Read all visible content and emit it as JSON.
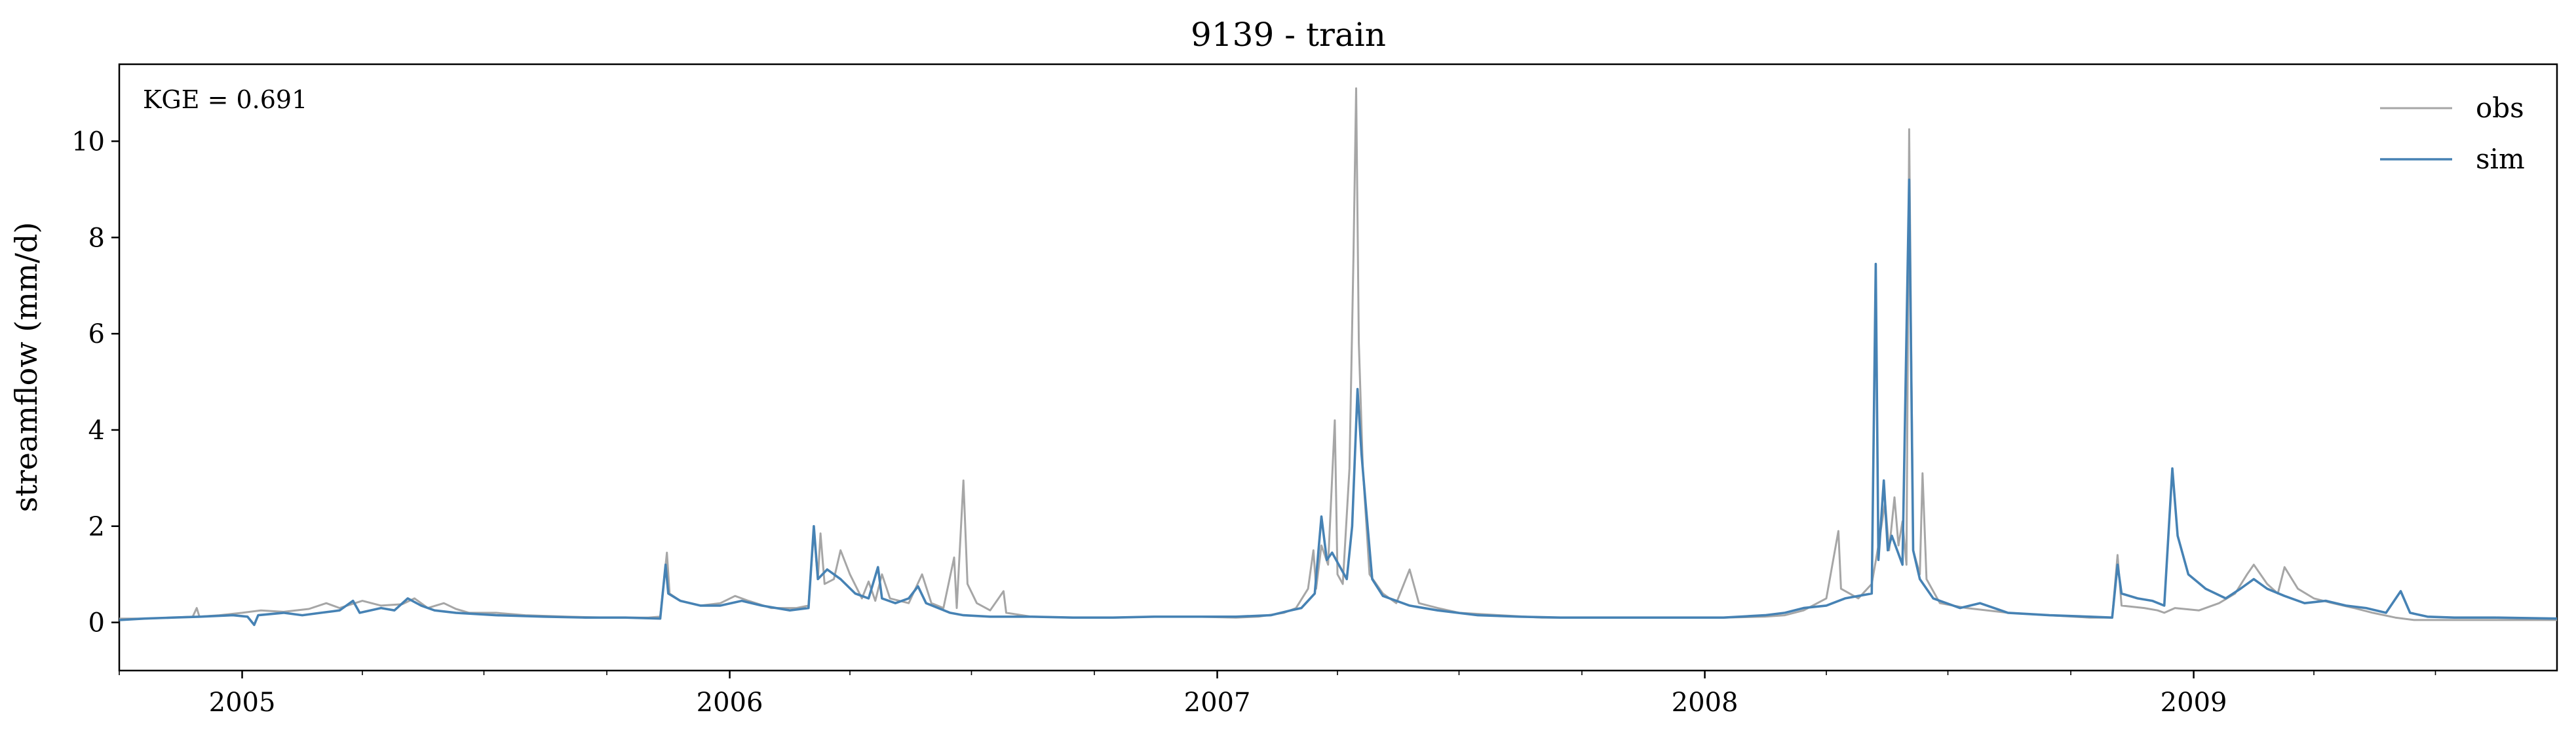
{
  "chart_data": {
    "type": "line",
    "title": "9139 - train",
    "xlabel": "",
    "ylabel": "streamflow (mm/d)",
    "annotation": "KGE = 0.691",
    "x_range": [
      "2004-10-01",
      "2009-09-30"
    ],
    "ylim": [
      -1,
      11.6
    ],
    "y_ticks": [
      0,
      2,
      4,
      6,
      8,
      10
    ],
    "y_tick_labels": [
      "0",
      "2",
      "4",
      "6",
      "8",
      "10"
    ],
    "x_ticks": [
      "2005-01-01",
      "2006-01-01",
      "2007-01-01",
      "2008-01-01",
      "2009-01-01"
    ],
    "x_tick_labels": [
      "2005",
      "2006",
      "2007",
      "2008",
      "2009"
    ],
    "grid": false,
    "legend_position": "top-right",
    "series": [
      {
        "name": "obs",
        "color": "#a6a6a6",
        "points": [
          [
            "2004-10-01",
            0.08
          ],
          [
            "2004-10-20",
            0.08
          ],
          [
            "2004-11-10",
            0.1
          ],
          [
            "2004-11-25",
            0.12
          ],
          [
            "2004-11-28",
            0.3
          ],
          [
            "2004-11-30",
            0.12
          ],
          [
            "2004-12-15",
            0.15
          ],
          [
            "2005-01-01",
            0.2
          ],
          [
            "2005-01-15",
            0.25
          ],
          [
            "2005-02-01",
            0.22
          ],
          [
            "2005-02-20",
            0.28
          ],
          [
            "2005-03-05",
            0.4
          ],
          [
            "2005-03-15",
            0.3
          ],
          [
            "2005-04-01",
            0.45
          ],
          [
            "2005-04-15",
            0.35
          ],
          [
            "2005-05-01",
            0.38
          ],
          [
            "2005-05-10",
            0.5
          ],
          [
            "2005-05-20",
            0.3
          ],
          [
            "2005-06-01",
            0.4
          ],
          [
            "2005-06-10",
            0.28
          ],
          [
            "2005-06-20",
            0.2
          ],
          [
            "2005-07-10",
            0.2
          ],
          [
            "2005-08-01",
            0.15
          ],
          [
            "2005-09-01",
            0.12
          ],
          [
            "2005-10-01",
            0.1
          ],
          [
            "2005-11-01",
            0.1
          ],
          [
            "2005-11-10",
            0.12
          ],
          [
            "2005-11-15",
            1.45
          ],
          [
            "2005-11-17",
            0.6
          ],
          [
            "2005-11-25",
            0.45
          ],
          [
            "2005-12-10",
            0.35
          ],
          [
            "2005-12-25",
            0.4
          ],
          [
            "2006-01-05",
            0.55
          ],
          [
            "2006-01-15",
            0.45
          ],
          [
            "2006-02-01",
            0.3
          ],
          [
            "2006-02-20",
            0.3
          ],
          [
            "2006-03-01",
            0.35
          ],
          [
            "2006-03-05",
            1.9
          ],
          [
            "2006-03-08",
            0.9
          ],
          [
            "2006-03-10",
            1.85
          ],
          [
            "2006-03-13",
            0.8
          ],
          [
            "2006-03-20",
            0.9
          ],
          [
            "2006-03-25",
            1.5
          ],
          [
            "2006-04-01",
            1.0
          ],
          [
            "2006-04-10",
            0.5
          ],
          [
            "2006-04-15",
            0.85
          ],
          [
            "2006-04-20",
            0.45
          ],
          [
            "2006-04-25",
            1.0
          ],
          [
            "2006-05-01",
            0.5
          ],
          [
            "2006-05-15",
            0.4
          ],
          [
            "2006-05-25",
            1.0
          ],
          [
            "2006-06-01",
            0.4
          ],
          [
            "2006-06-10",
            0.3
          ],
          [
            "2006-06-18",
            1.35
          ],
          [
            "2006-06-20",
            0.3
          ],
          [
            "2006-06-25",
            2.95
          ],
          [
            "2006-06-28",
            0.8
          ],
          [
            "2006-07-05",
            0.4
          ],
          [
            "2006-07-15",
            0.25
          ],
          [
            "2006-07-25",
            0.65
          ],
          [
            "2006-07-27",
            0.2
          ],
          [
            "2006-08-15",
            0.12
          ],
          [
            "2006-09-15",
            0.1
          ],
          [
            "2006-10-15",
            0.1
          ],
          [
            "2006-11-15",
            0.12
          ],
          [
            "2006-12-15",
            0.12
          ],
          [
            "2007-01-15",
            0.1
          ],
          [
            "2007-02-01",
            0.12
          ],
          [
            "2007-02-20",
            0.2
          ],
          [
            "2007-03-01",
            0.3
          ],
          [
            "2007-03-10",
            0.7
          ],
          [
            "2007-03-14",
            1.5
          ],
          [
            "2007-03-16",
            0.7
          ],
          [
            "2007-03-20",
            1.6
          ],
          [
            "2007-03-25",
            1.2
          ],
          [
            "2007-03-30",
            4.2
          ],
          [
            "2007-04-01",
            1.0
          ],
          [
            "2007-04-05",
            0.8
          ],
          [
            "2007-04-10",
            3.2
          ],
          [
            "2007-04-13",
            7.6
          ],
          [
            "2007-04-15",
            11.1
          ],
          [
            "2007-04-17",
            5.8
          ],
          [
            "2007-04-20",
            3.2
          ],
          [
            "2007-04-25",
            1.0
          ],
          [
            "2007-05-05",
            0.6
          ],
          [
            "2007-05-15",
            0.4
          ],
          [
            "2007-05-25",
            1.1
          ],
          [
            "2007-06-01",
            0.4
          ],
          [
            "2007-06-15",
            0.3
          ],
          [
            "2007-07-01",
            0.2
          ],
          [
            "2007-08-01",
            0.15
          ],
          [
            "2007-09-01",
            0.1
          ],
          [
            "2007-10-15",
            0.1
          ],
          [
            "2007-12-01",
            0.1
          ],
          [
            "2008-01-15",
            0.1
          ],
          [
            "2008-02-15",
            0.12
          ],
          [
            "2008-03-01",
            0.15
          ],
          [
            "2008-03-15",
            0.25
          ],
          [
            "2008-04-01",
            0.5
          ],
          [
            "2008-04-10",
            1.9
          ],
          [
            "2008-04-12",
            0.7
          ],
          [
            "2008-04-25",
            0.5
          ],
          [
            "2008-05-05",
            0.8
          ],
          [
            "2008-05-10",
            1.6
          ],
          [
            "2008-05-15",
            2.5
          ],
          [
            "2008-05-18",
            1.5
          ],
          [
            "2008-05-22",
            2.6
          ],
          [
            "2008-05-25",
            1.6
          ],
          [
            "2008-05-28",
            2.1
          ],
          [
            "2008-05-31",
            1.2
          ],
          [
            "2008-06-02",
            10.25
          ],
          [
            "2008-06-05",
            1.5
          ],
          [
            "2008-06-10",
            1.0
          ],
          [
            "2008-06-12",
            3.1
          ],
          [
            "2008-06-15",
            0.9
          ],
          [
            "2008-06-25",
            0.4
          ],
          [
            "2008-07-15",
            0.3
          ],
          [
            "2008-08-15",
            0.2
          ],
          [
            "2008-09-15",
            0.15
          ],
          [
            "2008-10-15",
            0.1
          ],
          [
            "2008-11-01",
            0.1
          ],
          [
            "2008-11-05",
            1.4
          ],
          [
            "2008-11-08",
            0.35
          ],
          [
            "2008-11-25",
            0.3
          ],
          [
            "2008-12-05",
            0.25
          ],
          [
            "2008-12-10",
            0.2
          ],
          [
            "2008-12-18",
            0.3
          ],
          [
            "2009-01-05",
            0.25
          ],
          [
            "2009-01-20",
            0.4
          ],
          [
            "2009-02-01",
            0.6
          ],
          [
            "2009-02-10",
            1.0
          ],
          [
            "2009-02-15",
            1.2
          ],
          [
            "2009-02-25",
            0.8
          ],
          [
            "2009-03-05",
            0.6
          ],
          [
            "2009-03-10",
            1.15
          ],
          [
            "2009-03-20",
            0.7
          ],
          [
            "2009-04-01",
            0.5
          ],
          [
            "2009-04-15",
            0.4
          ],
          [
            "2009-05-01",
            0.3
          ],
          [
            "2009-05-15",
            0.2
          ],
          [
            "2009-06-01",
            0.1
          ],
          [
            "2009-06-15",
            0.05
          ],
          [
            "2009-07-15",
            0.05
          ],
          [
            "2009-08-15",
            0.05
          ],
          [
            "2009-09-30",
            0.05
          ]
        ]
      },
      {
        "name": "sim",
        "color": "#4682b4",
        "points": [
          [
            "2004-10-01",
            0.05
          ],
          [
            "2004-10-20",
            0.08
          ],
          [
            "2004-11-10",
            0.1
          ],
          [
            "2004-12-01",
            0.12
          ],
          [
            "2004-12-25",
            0.15
          ],
          [
            "2005-01-05",
            0.12
          ],
          [
            "2005-01-10",
            -0.05
          ],
          [
            "2005-01-13",
            0.15
          ],
          [
            "2005-02-01",
            0.2
          ],
          [
            "2005-02-15",
            0.15
          ],
          [
            "2005-03-01",
            0.2
          ],
          [
            "2005-03-15",
            0.25
          ],
          [
            "2005-03-25",
            0.45
          ],
          [
            "2005-03-30",
            0.2
          ],
          [
            "2005-04-15",
            0.3
          ],
          [
            "2005-04-25",
            0.25
          ],
          [
            "2005-05-05",
            0.5
          ],
          [
            "2005-05-15",
            0.35
          ],
          [
            "2005-05-25",
            0.25
          ],
          [
            "2005-06-10",
            0.2
          ],
          [
            "2005-07-10",
            0.15
          ],
          [
            "2005-08-15",
            0.12
          ],
          [
            "2005-09-15",
            0.1
          ],
          [
            "2005-10-15",
            0.1
          ],
          [
            "2005-11-10",
            0.08
          ],
          [
            "2005-11-14",
            1.2
          ],
          [
            "2005-11-16",
            0.6
          ],
          [
            "2005-11-25",
            0.45
          ],
          [
            "2005-12-10",
            0.35
          ],
          [
            "2005-12-25",
            0.35
          ],
          [
            "2006-01-10",
            0.45
          ],
          [
            "2006-01-25",
            0.35
          ],
          [
            "2006-02-15",
            0.25
          ],
          [
            "2006-03-01",
            0.3
          ],
          [
            "2006-03-05",
            2.0
          ],
          [
            "2006-03-08",
            0.9
          ],
          [
            "2006-03-15",
            1.1
          ],
          [
            "2006-03-25",
            0.9
          ],
          [
            "2006-04-05",
            0.6
          ],
          [
            "2006-04-15",
            0.5
          ],
          [
            "2006-04-22",
            1.15
          ],
          [
            "2006-04-25",
            0.5
          ],
          [
            "2006-05-05",
            0.4
          ],
          [
            "2006-05-15",
            0.5
          ],
          [
            "2006-05-22",
            0.75
          ],
          [
            "2006-05-28",
            0.4
          ],
          [
            "2006-06-15",
            0.2
          ],
          [
            "2006-06-25",
            0.15
          ],
          [
            "2006-07-15",
            0.12
          ],
          [
            "2006-08-15",
            0.12
          ],
          [
            "2006-09-15",
            0.1
          ],
          [
            "2006-10-15",
            0.1
          ],
          [
            "2006-11-15",
            0.12
          ],
          [
            "2006-12-15",
            0.12
          ],
          [
            "2007-01-15",
            0.12
          ],
          [
            "2007-02-10",
            0.15
          ],
          [
            "2007-02-25",
            0.25
          ],
          [
            "2007-03-05",
            0.3
          ],
          [
            "2007-03-15",
            0.6
          ],
          [
            "2007-03-20",
            2.2
          ],
          [
            "2007-03-24",
            1.3
          ],
          [
            "2007-03-28",
            1.45
          ],
          [
            "2007-04-02",
            1.2
          ],
          [
            "2007-04-08",
            0.9
          ],
          [
            "2007-04-12",
            2.0
          ],
          [
            "2007-04-16",
            4.85
          ],
          [
            "2007-04-19",
            3.5
          ],
          [
            "2007-04-22",
            2.5
          ],
          [
            "2007-04-27",
            0.9
          ],
          [
            "2007-05-05",
            0.55
          ],
          [
            "2007-05-15",
            0.45
          ],
          [
            "2007-05-25",
            0.35
          ],
          [
            "2007-06-15",
            0.25
          ],
          [
            "2007-07-15",
            0.15
          ],
          [
            "2007-08-15",
            0.12
          ],
          [
            "2007-09-15",
            0.1
          ],
          [
            "2007-10-15",
            0.1
          ],
          [
            "2007-12-01",
            0.1
          ],
          [
            "2008-01-15",
            0.1
          ],
          [
            "2008-02-15",
            0.15
          ],
          [
            "2008-03-01",
            0.2
          ],
          [
            "2008-03-15",
            0.3
          ],
          [
            "2008-04-01",
            0.35
          ],
          [
            "2008-04-15",
            0.5
          ],
          [
            "2008-04-25",
            0.55
          ],
          [
            "2008-05-05",
            0.6
          ],
          [
            "2008-05-08",
            7.45
          ],
          [
            "2008-05-10",
            1.3
          ],
          [
            "2008-05-14",
            2.95
          ],
          [
            "2008-05-17",
            1.5
          ],
          [
            "2008-05-20",
            1.8
          ],
          [
            "2008-05-24",
            1.5
          ],
          [
            "2008-05-28",
            1.2
          ],
          [
            "2008-06-02",
            9.2
          ],
          [
            "2008-06-05",
            1.5
          ],
          [
            "2008-06-10",
            0.9
          ],
          [
            "2008-06-20",
            0.5
          ],
          [
            "2008-07-10",
            0.3
          ],
          [
            "2008-07-25",
            0.4
          ],
          [
            "2008-08-15",
            0.2
          ],
          [
            "2008-09-15",
            0.15
          ],
          [
            "2008-10-15",
            0.12
          ],
          [
            "2008-11-01",
            0.1
          ],
          [
            "2008-11-05",
            1.2
          ],
          [
            "2008-11-08",
            0.6
          ],
          [
            "2008-11-20",
            0.5
          ],
          [
            "2008-12-01",
            0.45
          ],
          [
            "2008-12-10",
            0.35
          ],
          [
            "2008-12-16",
            3.2
          ],
          [
            "2008-12-20",
            1.8
          ],
          [
            "2008-12-28",
            1.0
          ],
          [
            "2009-01-10",
            0.7
          ],
          [
            "2009-01-25",
            0.5
          ],
          [
            "2009-02-05",
            0.7
          ],
          [
            "2009-02-15",
            0.9
          ],
          [
            "2009-02-25",
            0.7
          ],
          [
            "2009-03-10",
            0.55
          ],
          [
            "2009-03-25",
            0.4
          ],
          [
            "2009-04-10",
            0.45
          ],
          [
            "2009-04-25",
            0.35
          ],
          [
            "2009-05-10",
            0.3
          ],
          [
            "2009-05-25",
            0.2
          ],
          [
            "2009-06-05",
            0.65
          ],
          [
            "2009-06-12",
            0.2
          ],
          [
            "2009-06-25",
            0.12
          ],
          [
            "2009-07-15",
            0.1
          ],
          [
            "2009-08-15",
            0.1
          ],
          [
            "2009-09-30",
            0.08
          ]
        ]
      }
    ]
  }
}
